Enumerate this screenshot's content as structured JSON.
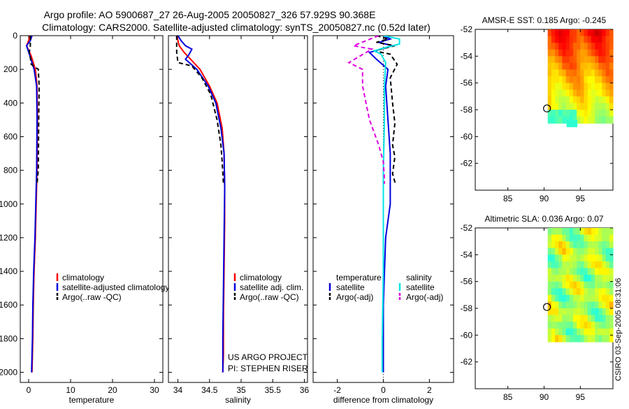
{
  "header": {
    "line1": "Argo profile: AO 5900687_27 26-Aug-2005 20050827_326 57.929S 90.368E",
    "line2": "Climatology: CARS2000. Satellite-adjusted climatology: synTS_20050827.nc (0.52d later)"
  },
  "footer": {
    "project": "US ARGO PROJECT",
    "pi": "PI: STEPHEN RISER",
    "stamp": "CSIRO 03-Sep-2005 08:31:06"
  },
  "colors": {
    "climatology": "#ff0000",
    "satellite": "#0000dd",
    "argo": "#000000",
    "satellite_salinity": "#00e5e5",
    "argo_adj_salinity": "#e000e0",
    "marker": "#000000"
  },
  "chart_data": [
    {
      "type": "line",
      "id": "temperature-panel",
      "xlabel": "temperature",
      "ylabel": "",
      "xlim": [
        -2,
        32
      ],
      "ylim": [
        2060,
        0
      ],
      "xticks": [
        "0",
        "10",
        "20",
        "30"
      ],
      "yticks": [
        "0",
        "200",
        "400",
        "600",
        "800",
        "1000",
        "1200",
        "1400",
        "1600",
        "1800",
        "2000"
      ],
      "legend_position": "center-right",
      "series": [
        {
          "name": "climatology",
          "color": "#ff0000",
          "dash": "solid",
          "x": [
            0.3,
            0.0,
            -0.5,
            0.6,
            1.6,
            2.0,
            2.1,
            2.0,
            1.8,
            1.6,
            1.3,
            1.1,
            1.0,
            0.8
          ],
          "y": [
            0,
            30,
            60,
            120,
            200,
            300,
            500,
            800,
            1000,
            1200,
            1400,
            1600,
            1800,
            2000
          ]
        },
        {
          "name": "satellite-adjusted climatology",
          "color": "#0000dd",
          "dash": "solid",
          "x": [
            0.8,
            0.4,
            -0.5,
            0.3,
            1.3,
            1.9,
            2.0,
            1.9,
            1.7,
            1.5,
            1.2,
            1.0,
            0.9,
            0.7
          ],
          "y": [
            0,
            30,
            60,
            120,
            200,
            300,
            500,
            800,
            1000,
            1200,
            1400,
            1600,
            1800,
            2000
          ]
        },
        {
          "name": "Argo(..raw -QC)",
          "color": "#000000",
          "dash": "dashed",
          "x": [
            0.4,
            0.4,
            0.1,
            0.4,
            0.6,
            2.3,
            2.5,
            2.4,
            2.3,
            2.0
          ],
          "y": [
            0,
            60,
            110,
            130,
            170,
            200,
            300,
            500,
            800,
            880
          ]
        }
      ]
    },
    {
      "type": "line",
      "id": "salinity-panel",
      "xlabel": "salinity",
      "ylabel": "",
      "xlim": [
        33.85,
        36.05
      ],
      "ylim": [
        2060,
        0
      ],
      "xticks": [
        "34",
        "34.5",
        "35",
        "35.5",
        "36"
      ],
      "yticks": [],
      "legend_position": "center-right",
      "series": [
        {
          "name": "climatology",
          "color": "#ff0000",
          "dash": "solid",
          "x": [
            33.98,
            34.02,
            34.1,
            34.2,
            34.35,
            34.5,
            34.62,
            34.7,
            34.73,
            34.74,
            34.74,
            34.73,
            34.72,
            34.72,
            34.71
          ],
          "y": [
            0,
            60,
            100,
            140,
            200,
            300,
            400,
            550,
            700,
            900,
            1100,
            1400,
            1700,
            1900,
            2000
          ]
        },
        {
          "name": "satellite adj. clim.",
          "color": "#0000dd",
          "dash": "solid",
          "x": [
            34.0,
            34.05,
            34.12,
            34.22,
            34.18,
            34.12,
            34.3,
            34.48,
            34.6,
            34.68,
            34.73,
            34.74,
            34.73,
            34.72,
            34.71,
            34.71
          ],
          "y": [
            0,
            30,
            60,
            80,
            110,
            140,
            200,
            300,
            400,
            550,
            700,
            900,
            1200,
            1500,
            1800,
            2000
          ]
        },
        {
          "name": "Argo(..raw -QC)",
          "color": "#000000",
          "dash": "dashed",
          "x": [
            33.98,
            33.98,
            34.0,
            34.22,
            34.38,
            34.52,
            34.62,
            34.68,
            34.7,
            34.72
          ],
          "y": [
            0,
            100,
            160,
            180,
            250,
            350,
            500,
            650,
            750,
            880
          ]
        }
      ]
    },
    {
      "type": "line",
      "id": "difference-panel",
      "xlabel": "difference from climatology",
      "ylabel": "",
      "xlim": [
        -3.05,
        3.05
      ],
      "ylim": [
        2060,
        0
      ],
      "xticks": [
        "-2",
        "0",
        "2"
      ],
      "yticks": [],
      "legend_position": "center",
      "legend_headers": [
        "temperature",
        "salinity"
      ],
      "series": [
        {
          "name": "satellite",
          "group": "temperature",
          "color": "#0000dd",
          "dash": "solid",
          "x": [
            0.0,
            0.3,
            -0.2,
            0.4,
            -0.6,
            -0.3,
            0.2,
            0.1,
            0.2,
            0.3,
            0.3,
            0.3,
            0.1,
            0.0,
            0.0
          ],
          "y": [
            0,
            20,
            40,
            60,
            100,
            140,
            200,
            300,
            500,
            700,
            900,
            1000,
            1200,
            1600,
            2000
          ]
        },
        {
          "name": "Argo(-adj)",
          "group": "temperature",
          "color": "#000000",
          "dash": "dashed",
          "x": [
            -0.3,
            0.2,
            -0.3,
            0.5,
            -0.4,
            0.3,
            0.6,
            0.3,
            0.4,
            0.5,
            0.4,
            0.5,
            0.4,
            0.5,
            0.4
          ],
          "y": [
            0,
            20,
            40,
            60,
            90,
            110,
            170,
            250,
            400,
            520,
            650,
            720,
            820,
            870,
            880
          ]
        },
        {
          "name": "satellite",
          "group": "salinity",
          "color": "#00e5e5",
          "dash": "solid",
          "x": [
            0.0,
            0.7,
            0.7,
            0.1,
            -0.4,
            -0.1,
            0.1,
            0.05,
            0.05,
            0.0,
            0.0,
            0.0,
            -0.05,
            -0.05
          ],
          "y": [
            0,
            20,
            50,
            70,
            90,
            110,
            160,
            300,
            500,
            800,
            1000,
            1400,
            1800,
            2000
          ]
        },
        {
          "name": "Argo(-adj)",
          "group": "salinity",
          "color": "#e000e0",
          "dash": "dashed",
          "x": [
            -0.2,
            -1.3,
            -0.5,
            -1.5,
            -0.9,
            -0.9,
            -0.6,
            -0.2,
            0.0,
            0.05,
            0.05
          ],
          "y": [
            0,
            60,
            80,
            160,
            200,
            300,
            500,
            650,
            750,
            850,
            880
          ]
        }
      ]
    },
    {
      "type": "heatmap",
      "id": "sst-map",
      "title": "AMSR-E SST: 0.185 Argo: -0.245",
      "xlim": [
        80.5,
        99.5
      ],
      "ylim": [
        -64,
        -52
      ],
      "xticks": [
        "85",
        "90",
        "95"
      ],
      "yticks": [
        "-52",
        "-54",
        "-56",
        "-58",
        "-60",
        "-62"
      ],
      "grid": false,
      "colormap": "jet",
      "marker": {
        "lon": 90.4,
        "lat": -57.9
      }
    },
    {
      "type": "heatmap",
      "id": "sla-map",
      "title": "Altimetric SLA: 0.036 Argo: 0.07",
      "xlim": [
        80.5,
        99.5
      ],
      "ylim": [
        -64,
        -52
      ],
      "xticks": [
        "85",
        "90",
        "95"
      ],
      "yticks": [
        "-52",
        "-54",
        "-56",
        "-58",
        "-60",
        "-62"
      ],
      "grid": false,
      "colormap": "jet",
      "marker": {
        "lon": 90.4,
        "lat": -57.9
      }
    }
  ]
}
